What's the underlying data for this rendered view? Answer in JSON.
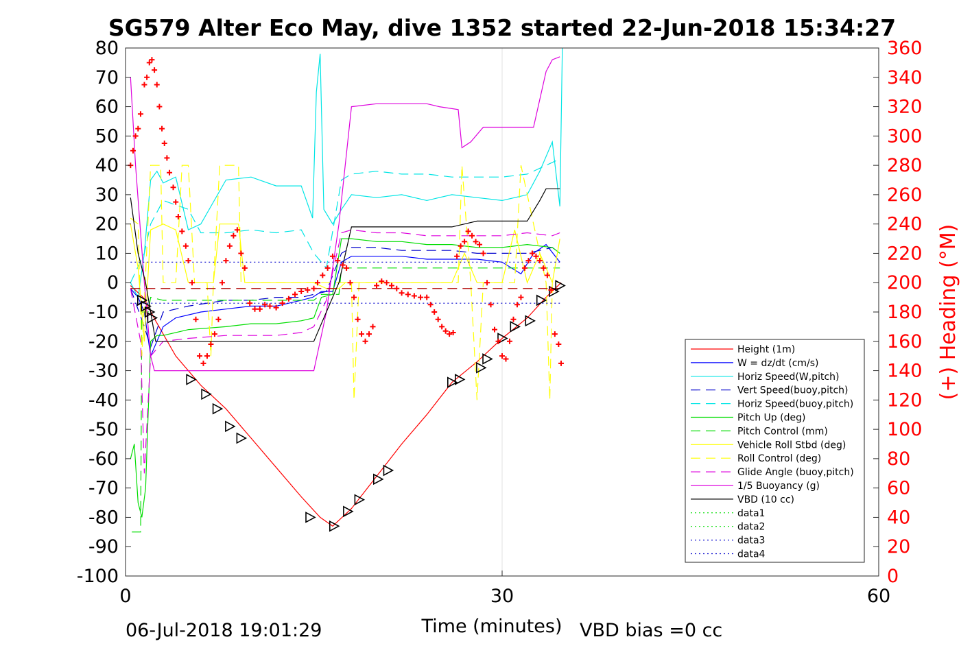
{
  "chart_data": {
    "type": "line",
    "title": "SG579 Alter Eco May, dive 1352 started 22-Jun-2018 15:34:27",
    "xlabel": "Time (minutes)",
    "ylabel_right": "(+) Heading (°M)",
    "xlim": [
      0,
      60
    ],
    "ylim_left": [
      -100,
      80
    ],
    "ylim_right": [
      0,
      360
    ],
    "xticks": [
      "0",
      "30",
      "60"
    ],
    "yticks_left": [
      "80",
      "70",
      "60",
      "50",
      "40",
      "30",
      "20",
      "10",
      "0",
      "-10",
      "-20",
      "-30",
      "-40",
      "-50",
      "-60",
      "-70",
      "-80",
      "-90",
      "-100"
    ],
    "yticks_right": [
      "360",
      "340",
      "320",
      "300",
      "280",
      "260",
      "240",
      "220",
      "200",
      "180",
      "160",
      "140",
      "120",
      "100",
      "80",
      "60",
      "40",
      "20",
      "0"
    ],
    "grid": "x at 30",
    "legend_position": "inside-bottom-right",
    "footer_left": "06-Jul-2018 19:01:29",
    "footer_right": "VBD bias =0 cc",
    "series": [
      {
        "name": "Height (1m)",
        "color": "#ff0000",
        "style": "solid",
        "x": [
          0.4,
          1.4,
          2.4,
          4.0,
          6.0,
          8.0,
          10.0,
          12.0,
          14.0,
          15.5,
          16.5,
          18.0,
          20.0,
          22.0,
          24.0,
          26.0,
          28.0,
          30.0,
          32.0,
          33.5,
          34.7
        ],
        "y": [
          -1,
          -5,
          -13,
          -25,
          -35,
          -43,
          -53,
          -63,
          -73,
          -80,
          -83,
          -77,
          -66,
          -55,
          -45,
          -34,
          -27,
          -19,
          -12,
          -5,
          0
        ]
      },
      {
        "name": "W = dz/dt (cm/s)",
        "color": "#0000ff",
        "style": "solid",
        "x": [
          0.4,
          1.0,
          1.5,
          2.0,
          3.0,
          4.0,
          6.0,
          8.0,
          10.0,
          12.0,
          14.0,
          14.9,
          15.6,
          16.5,
          17.2,
          18.0,
          20.0,
          22.0,
          24.0,
          26.0,
          28.0,
          30.0,
          31.5,
          32.5,
          33.5,
          34.6
        ],
        "y": [
          -2,
          -5,
          -10,
          -25,
          -15,
          -12,
          -10,
          -9,
          -8,
          -8,
          -6,
          -5,
          -3,
          -3,
          7,
          9,
          9,
          9,
          8,
          8,
          8,
          7,
          3,
          10,
          13,
          7
        ]
      },
      {
        "name": "Horiz Speed(W,pitch)",
        "color": "#00e5e5",
        "style": "solid",
        "x": [
          0.4,
          1.0,
          1.5,
          2.0,
          2.5,
          3.0,
          4.0,
          5.0,
          6.0,
          8.0,
          10.0,
          12.0,
          14.0,
          14.9,
          15.2,
          15.5,
          15.8,
          16.5,
          17.2,
          18.0,
          20.0,
          22.0,
          24.0,
          26.0,
          28.0,
          30.0,
          32.0,
          33.0,
          34.0,
          34.6,
          34.8
        ],
        "y": [
          0,
          -5,
          10,
          35,
          38,
          34,
          36,
          18,
          20,
          35,
          36,
          33,
          33,
          22,
          65,
          78,
          25,
          20,
          25,
          30,
          29,
          30,
          28,
          30,
          29,
          28,
          30,
          38,
          48,
          26,
          80
        ]
      },
      {
        "name": "Vert Speed(buoy,pitch)",
        "color": "#0000cc",
        "style": "dashed",
        "x": [
          0.4,
          1.5,
          2.0,
          3.0,
          5.0,
          8.0,
          10.0,
          12.0,
          14.0,
          15.0,
          16.0,
          17.2,
          18.0,
          20.0,
          22.0,
          24.0,
          26.0,
          28.0,
          30.0,
          32.0,
          34.0,
          34.6
        ],
        "y": [
          -2,
          -15,
          -22,
          -10,
          -8,
          -6,
          -6,
          -5,
          -5,
          -4,
          -3,
          10,
          12,
          12,
          11,
          11,
          11,
          10,
          10,
          10,
          12,
          10
        ]
      },
      {
        "name": "Horiz Speed(buoy,pitch)",
        "color": "#00e5e5",
        "style": "dashed",
        "x": [
          0.4,
          1.5,
          2.0,
          3.0,
          5.0,
          6.0,
          8.0,
          10.0,
          12.0,
          14.0,
          15.0,
          16.0,
          17.2,
          18.0,
          20.0,
          22.0,
          24.0,
          26.0,
          28.0,
          30.0,
          32.0,
          33.5,
          34.5
        ],
        "y": [
          0,
          10,
          20,
          28,
          25,
          17,
          17,
          18,
          17,
          18,
          10,
          5,
          35,
          37,
          38,
          37,
          37,
          36,
          36,
          36,
          37,
          40,
          42
        ]
      },
      {
        "name": "Pitch Up (deg)",
        "color": "#00dd00",
        "style": "solid",
        "x": [
          0.4,
          0.7,
          1.0,
          1.3,
          1.6,
          2.0,
          2.5,
          3.0,
          5.0,
          8.0,
          10.0,
          12.0,
          14.0,
          15.0,
          15.6,
          16.5,
          17.2,
          18.0,
          20.0,
          22.0,
          24.0,
          26.0,
          28.0,
          30.0,
          32.0,
          34.0,
          34.6
        ],
        "y": [
          -60,
          -55,
          -75,
          -80,
          -70,
          -20,
          -18,
          -18,
          -16,
          -15,
          -14,
          -14,
          -13,
          -12,
          -5,
          -4,
          15,
          15,
          14,
          14,
          13,
          13,
          12,
          12,
          13,
          12,
          10
        ]
      },
      {
        "name": "Pitch Control (mm)",
        "color": "#00dd00",
        "style": "dashed",
        "x": [
          0.5,
          1.2,
          1.3,
          1.8,
          2.0,
          3.0,
          10.0,
          15.0,
          15.6,
          17.0,
          17.2,
          24.0,
          34.6
        ],
        "y": [
          -85,
          -85,
          -10,
          -10,
          -5,
          -6,
          -6,
          -6,
          -4,
          -4,
          5,
          5,
          5
        ]
      },
      {
        "name": "Vehicle Roll Stbd (deg)",
        "color": "#ffff00",
        "style": "solid",
        "x": [
          0.4,
          1.0,
          1.5,
          2.0,
          3.0,
          4.0,
          5.0,
          5.5,
          7.0,
          7.5,
          9.0,
          9.5,
          12.0,
          15.0,
          16.0,
          17.0,
          17.5,
          20.0,
          24.0,
          26.0,
          27.0,
          28.0,
          30.0,
          31.0,
          32.0,
          33.0,
          34.0,
          34.6
        ],
        "y": [
          20,
          5,
          -20,
          18,
          20,
          18,
          0,
          0,
          0,
          20,
          20,
          0,
          0,
          0,
          -2,
          -2,
          0,
          0,
          0,
          0,
          10,
          0,
          0,
          18,
          0,
          10,
          0,
          15
        ]
      },
      {
        "name": "Roll Control (deg)",
        "color": "#ffff00",
        "style": "dashed",
        "x": [
          0.4,
          1.0,
          1.3,
          2.0,
          2.8,
          3.0,
          4.0,
          4.5,
          5.0,
          5.5,
          6.5,
          6.8,
          7.0,
          7.5,
          9.0,
          9.2,
          15.0,
          17.0,
          18.0,
          18.2,
          18.6,
          19.0,
          26.5,
          26.8,
          27.5,
          28.0,
          28.5,
          29.0,
          30.0,
          31.0,
          31.5,
          33.5,
          33.8,
          34.0,
          34.6
        ],
        "y": [
          22,
          20,
          -25,
          40,
          40,
          0,
          0,
          40,
          40,
          0,
          0,
          -25,
          0,
          40,
          40,
          0,
          0,
          0,
          0,
          -40,
          0,
          0,
          0,
          40,
          0,
          -40,
          0,
          0,
          0,
          0,
          40,
          0,
          -40,
          0,
          0
        ]
      },
      {
        "name": "Glide Angle (buoy,pitch)",
        "color": "#dd00dd",
        "style": "dashed",
        "x": [
          0.4,
          1.2,
          1.5,
          2.0,
          3.0,
          5.0,
          8.0,
          10.0,
          12.0,
          14.0,
          15.0,
          16.0,
          17.2,
          18.0,
          20.0,
          22.0,
          24.0,
          26.0,
          28.0,
          30.0,
          32.0,
          34.0,
          34.6
        ],
        "y": [
          -2,
          -20,
          -65,
          -25,
          -20,
          -19,
          -18,
          -18,
          -18,
          -17,
          -15,
          -6,
          17,
          18,
          17,
          17,
          16,
          16,
          16,
          16,
          17,
          16,
          17
        ]
      },
      {
        "name": "1/5 Buoyancy (g)",
        "color": "#dd00dd",
        "style": "solid",
        "x": [
          0.4,
          0.8,
          1.5,
          2.0,
          2.3,
          4.0,
          6.0,
          15.0,
          16.0,
          17.0,
          18.0,
          20.0,
          22.0,
          24.0,
          25.0,
          26.5,
          26.8,
          27.5,
          28.5,
          32.5,
          33.5,
          34.0,
          34.6
        ],
        "y": [
          70,
          40,
          0,
          -25,
          -30,
          -30,
          -30,
          -30,
          -10,
          20,
          60,
          61,
          61,
          61,
          60,
          59,
          46,
          48,
          53,
          53,
          72,
          76,
          77
        ]
      },
      {
        "name": "VBD (10 cc)",
        "color": "#000000",
        "style": "solid",
        "x": [
          0.4,
          1.0,
          1.6,
          2.0,
          2.4,
          3.0,
          5.0,
          10.0,
          14.0,
          15.0,
          16.0,
          17.0,
          18.0,
          20.0,
          24.0,
          26.0,
          27.0,
          28.0,
          30.0,
          32.0,
          33.0,
          33.5,
          34.0,
          34.6
        ],
        "y": [
          29,
          10,
          0,
          -10,
          -20,
          -20,
          -20,
          -20,
          -20,
          -20,
          -10,
          0,
          19,
          19,
          19,
          19,
          20,
          21,
          21,
          21,
          28,
          32,
          32,
          32
        ]
      },
      {
        "name": "data1",
        "color": "#00dd00",
        "style": "dotted",
        "x": [],
        "y": []
      },
      {
        "name": "data2",
        "color": "#00dd00",
        "style": "dotted",
        "x": [],
        "y": []
      },
      {
        "name": "data3",
        "color": "#0000cc",
        "style": "dotted",
        "x": [
          0.4,
          34.6
        ],
        "y": [
          7,
          7
        ]
      },
      {
        "name": "data4",
        "color": "#0000cc",
        "style": "dotted",
        "x": [
          0.4,
          34.6
        ],
        "y": [
          -7,
          -7
        ]
      }
    ],
    "reference_lines": [
      {
        "name": "dive-reference",
        "color": "#b00000",
        "style": "dashed",
        "y": -2,
        "x": [
          0.4,
          34.6
        ]
      }
    ],
    "markers_triangles": {
      "color": "#000000",
      "x": [
        1.3,
        1.6,
        1.9,
        2.1,
        5.2,
        6.4,
        7.3,
        8.3,
        9.2,
        14.7,
        16.6,
        17.7,
        18.6,
        20.1,
        20.9,
        26.0,
        26.6,
        28.3,
        28.8,
        30.0,
        31.0,
        32.2,
        33.1,
        34.1,
        34.6
      ],
      "y": [
        -6,
        -8,
        -10,
        -12,
        -33,
        -38,
        -43,
        -49,
        -53,
        -80,
        -83,
        -78,
        -74,
        -67,
        -64,
        -34,
        -33,
        -29,
        -26,
        -19,
        -15,
        -13,
        -6,
        -3,
        -1
      ]
    },
    "heading_points": {
      "color": "#ff0000",
      "x": [
        0.4,
        0.6,
        0.8,
        1.0,
        1.2,
        1.5,
        1.7,
        1.9,
        2.1,
        2.3,
        2.5,
        2.7,
        2.9,
        3.1,
        3.3,
        3.5,
        3.8,
        4.0,
        4.2,
        4.5,
        4.8,
        5.0,
        5.3,
        5.6,
        5.9,
        6.2,
        6.5,
        6.8,
        7.1,
        7.4,
        7.7,
        8.0,
        8.3,
        8.6,
        8.9,
        9.2,
        9.5,
        9.9,
        10.3,
        10.7,
        11.1,
        11.5,
        12.0,
        12.5,
        13.0,
        13.5,
        14.0,
        14.5,
        15.0,
        15.3,
        15.7,
        16.1,
        16.5,
        16.9,
        17.3,
        17.6,
        17.9,
        18.2,
        18.5,
        18.8,
        19.1,
        19.4,
        19.7,
        20.0,
        20.4,
        20.8,
        21.2,
        21.6,
        22.0,
        22.5,
        23.0,
        23.5,
        24.0,
        24.3,
        24.6,
        24.9,
        25.2,
        25.5,
        25.8,
        26.1,
        26.4,
        26.7,
        27.0,
        27.3,
        27.6,
        27.9,
        28.2,
        28.5,
        28.8,
        29.1,
        29.4,
        29.7,
        30.0,
        30.3,
        30.6,
        30.9,
        31.2,
        31.5,
        31.8,
        32.1,
        32.4,
        32.7,
        33.0,
        33.3,
        33.6,
        33.9,
        34.2,
        34.5,
        34.7
      ],
      "y": [
        280,
        290,
        300,
        305,
        315,
        335,
        340,
        350,
        352,
        345,
        335,
        320,
        305,
        295,
        285,
        275,
        265,
        255,
        245,
        235,
        225,
        215,
        200,
        175,
        150,
        145,
        150,
        158,
        165,
        175,
        200,
        215,
        225,
        232,
        236,
        220,
        210,
        186,
        182,
        182,
        185,
        184,
        183,
        186,
        189,
        192,
        194,
        195,
        196,
        200,
        205,
        210,
        218,
        215,
        212,
        210,
        200,
        190,
        175,
        165,
        160,
        165,
        170,
        198,
        201,
        200,
        198,
        196,
        193,
        192,
        191,
        190,
        190,
        185,
        180,
        175,
        170,
        167,
        165,
        166,
        218,
        225,
        228,
        235,
        232,
        228,
        226,
        220,
        200,
        185,
        168,
        160,
        150,
        148,
        160,
        175,
        185,
        190,
        210,
        215,
        220,
        218,
        215,
        210,
        205,
        195,
        165,
        158,
        145
      ]
    }
  }
}
